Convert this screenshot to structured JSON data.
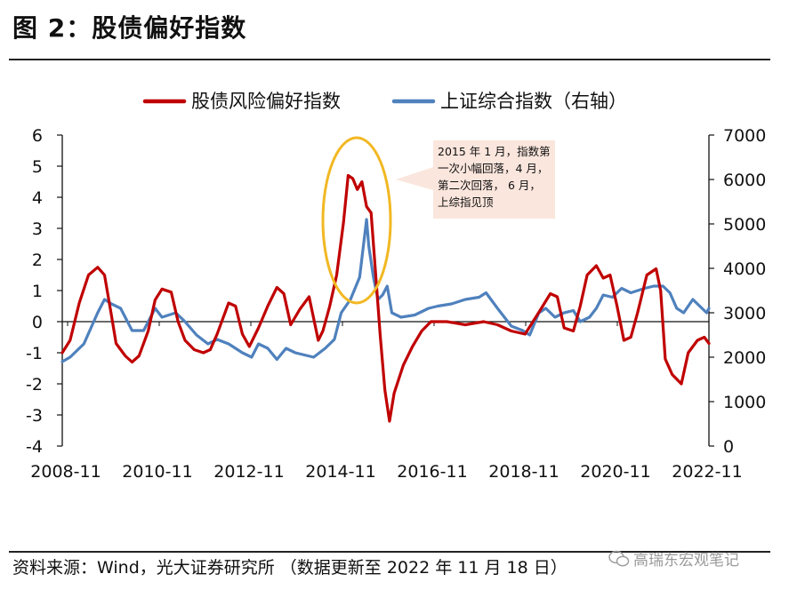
{
  "title": "图 2：股债偏好指数",
  "source": "资料来源：Wind，光大证券研究所 （数据更新至 2022 年 11 月 18 日）",
  "watermark": "高瑞东宏观笔记",
  "annotation": [
    "2015 年 1 月，指数第",
    "一次小幅回落，4 月，",
    "第二次回落， 6 月，",
    "上综指见顶"
  ],
  "chart_data": {
    "type": "line",
    "x_tick_labels": [
      "2008-11",
      "2010-11",
      "2012-11",
      "2014-11",
      "2016-11",
      "2018-11",
      "2020-11",
      "2022-11"
    ],
    "x_range": [
      2008.83,
      2022.9
    ],
    "y_left": {
      "label": "股债风险偏好指数",
      "range": [
        -4,
        6
      ],
      "ticks": [
        -4,
        -3,
        -2,
        -1,
        0,
        1,
        2,
        3,
        4,
        5,
        6
      ]
    },
    "y_right": {
      "label": "上证综合指数（右轴）",
      "range": [
        0,
        7000
      ],
      "ticks": [
        0,
        1000,
        2000,
        3000,
        4000,
        5000,
        6000,
        7000
      ]
    },
    "series": [
      {
        "name": "股债风险偏好指数",
        "axis": "left",
        "color": "#c00000",
        "points": [
          [
            2008.83,
            -1.0
          ],
          [
            2009.0,
            -0.6
          ],
          [
            2009.2,
            0.6
          ],
          [
            2009.4,
            1.5
          ],
          [
            2009.6,
            1.75
          ],
          [
            2009.75,
            1.5
          ],
          [
            2009.9,
            0.2
          ],
          [
            2010.0,
            -0.7
          ],
          [
            2010.2,
            -1.1
          ],
          [
            2010.35,
            -1.3
          ],
          [
            2010.5,
            -1.1
          ],
          [
            2010.7,
            -0.3
          ],
          [
            2010.85,
            0.7
          ],
          [
            2011.0,
            1.05
          ],
          [
            2011.2,
            0.95
          ],
          [
            2011.35,
            0.0
          ],
          [
            2011.5,
            -0.6
          ],
          [
            2011.7,
            -0.9
          ],
          [
            2011.9,
            -1.0
          ],
          [
            2012.05,
            -0.9
          ],
          [
            2012.2,
            -0.4
          ],
          [
            2012.45,
            0.6
          ],
          [
            2012.6,
            0.5
          ],
          [
            2012.75,
            -0.4
          ],
          [
            2012.9,
            -0.8
          ],
          [
            2013.1,
            -0.2
          ],
          [
            2013.3,
            0.5
          ],
          [
            2013.5,
            1.1
          ],
          [
            2013.65,
            0.9
          ],
          [
            2013.8,
            -0.1
          ],
          [
            2014.0,
            0.4
          ],
          [
            2014.2,
            0.8
          ],
          [
            2014.4,
            -0.6
          ],
          [
            2014.5,
            -0.3
          ],
          [
            2014.65,
            0.5
          ],
          [
            2014.8,
            1.5
          ],
          [
            2014.95,
            3.2
          ],
          [
            2015.05,
            4.7
          ],
          [
            2015.15,
            4.6
          ],
          [
            2015.25,
            4.25
          ],
          [
            2015.35,
            4.5
          ],
          [
            2015.45,
            3.7
          ],
          [
            2015.55,
            3.5
          ],
          [
            2015.65,
            1.5
          ],
          [
            2015.75,
            -0.5
          ],
          [
            2015.85,
            -2.2
          ],
          [
            2015.95,
            -3.2
          ],
          [
            2016.05,
            -2.3
          ],
          [
            2016.25,
            -1.4
          ],
          [
            2016.45,
            -0.8
          ],
          [
            2016.65,
            -0.3
          ],
          [
            2016.85,
            0.0
          ],
          [
            2017.2,
            0.0
          ],
          [
            2017.6,
            -0.1
          ],
          [
            2018.0,
            0.0
          ],
          [
            2018.3,
            -0.1
          ],
          [
            2018.6,
            -0.3
          ],
          [
            2018.9,
            -0.4
          ],
          [
            2019.2,
            0.3
          ],
          [
            2019.45,
            0.9
          ],
          [
            2019.6,
            0.8
          ],
          [
            2019.75,
            -0.2
          ],
          [
            2019.95,
            -0.3
          ],
          [
            2020.1,
            0.5
          ],
          [
            2020.25,
            1.5
          ],
          [
            2020.45,
            1.8
          ],
          [
            2020.6,
            1.4
          ],
          [
            2020.75,
            1.5
          ],
          [
            2020.9,
            0.5
          ],
          [
            2021.05,
            -0.6
          ],
          [
            2021.2,
            -0.5
          ],
          [
            2021.35,
            0.3
          ],
          [
            2021.55,
            1.5
          ],
          [
            2021.75,
            1.7
          ],
          [
            2021.85,
            1.0
          ],
          [
            2021.95,
            -1.2
          ],
          [
            2022.1,
            -1.7
          ],
          [
            2022.3,
            -2.0
          ],
          [
            2022.45,
            -1.0
          ],
          [
            2022.65,
            -0.6
          ],
          [
            2022.8,
            -0.5
          ],
          [
            2022.9,
            -0.7
          ]
        ]
      },
      {
        "name": "上证综合指数（右轴）",
        "axis": "right",
        "color": "#4f81bd",
        "points": [
          [
            2008.83,
            1900
          ],
          [
            2009.0,
            2000
          ],
          [
            2009.3,
            2300
          ],
          [
            2009.6,
            3000
          ],
          [
            2009.75,
            3300
          ],
          [
            2009.9,
            3200
          ],
          [
            2010.1,
            3100
          ],
          [
            2010.35,
            2600
          ],
          [
            2010.6,
            2600
          ],
          [
            2010.85,
            3100
          ],
          [
            2011.0,
            2900
          ],
          [
            2011.3,
            3000
          ],
          [
            2011.5,
            2800
          ],
          [
            2011.75,
            2500
          ],
          [
            2012.0,
            2300
          ],
          [
            2012.2,
            2400
          ],
          [
            2012.45,
            2300
          ],
          [
            2012.75,
            2100
          ],
          [
            2012.95,
            2000
          ],
          [
            2013.1,
            2300
          ],
          [
            2013.3,
            2200
          ],
          [
            2013.5,
            1950
          ],
          [
            2013.7,
            2200
          ],
          [
            2013.9,
            2100
          ],
          [
            2014.1,
            2050
          ],
          [
            2014.3,
            2000
          ],
          [
            2014.55,
            2200
          ],
          [
            2014.75,
            2400
          ],
          [
            2014.9,
            3000
          ],
          [
            2015.1,
            3300
          ],
          [
            2015.3,
            3800
          ],
          [
            2015.45,
            5100
          ],
          [
            2015.5,
            4500
          ],
          [
            2015.6,
            3800
          ],
          [
            2015.7,
            3300
          ],
          [
            2015.8,
            3400
          ],
          [
            2015.9,
            3600
          ],
          [
            2016.0,
            3000
          ],
          [
            2016.2,
            2900
          ],
          [
            2016.5,
            2950
          ],
          [
            2016.8,
            3100
          ],
          [
            2017.0,
            3150
          ],
          [
            2017.3,
            3200
          ],
          [
            2017.6,
            3300
          ],
          [
            2017.9,
            3350
          ],
          [
            2018.05,
            3450
          ],
          [
            2018.3,
            3100
          ],
          [
            2018.6,
            2700
          ],
          [
            2018.85,
            2600
          ],
          [
            2019.0,
            2500
          ],
          [
            2019.2,
            3000
          ],
          [
            2019.35,
            3100
          ],
          [
            2019.55,
            2900
          ],
          [
            2019.75,
            3000
          ],
          [
            2019.95,
            3050
          ],
          [
            2020.1,
            2800
          ],
          [
            2020.3,
            2900
          ],
          [
            2020.45,
            3100
          ],
          [
            2020.6,
            3400
          ],
          [
            2020.8,
            3350
          ],
          [
            2021.0,
            3550
          ],
          [
            2021.2,
            3450
          ],
          [
            2021.5,
            3550
          ],
          [
            2021.7,
            3600
          ],
          [
            2021.9,
            3600
          ],
          [
            2022.05,
            3450
          ],
          [
            2022.2,
            3100
          ],
          [
            2022.35,
            3000
          ],
          [
            2022.55,
            3300
          ],
          [
            2022.75,
            3100
          ],
          [
            2022.85,
            3000
          ],
          [
            2022.9,
            3100
          ]
        ]
      }
    ]
  }
}
